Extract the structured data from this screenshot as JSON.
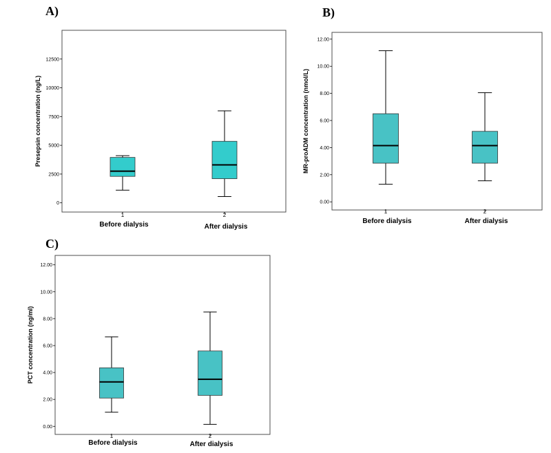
{
  "chart_data": [
    {
      "panel": "A)",
      "type": "box",
      "ylabel": "Presepsin concentration (ng/L)",
      "ylim": [
        -800,
        15000
      ],
      "yticks": [
        0,
        2500,
        5000,
        7500,
        10000,
        12500
      ],
      "ytick_labels": [
        "0",
        "2500",
        "5000",
        "7500",
        "10000",
        "12500"
      ],
      "category_numbers": [
        "1",
        "2"
      ],
      "categories": [
        "Before dialysis",
        "After dialysis"
      ],
      "color": "#33cccc",
      "boxes": [
        {
          "min": 1100,
          "q1": 2300,
          "median": 2750,
          "q3": 3950,
          "max": 4100
        },
        {
          "min": 550,
          "q1": 2100,
          "median": 3300,
          "q3": 5350,
          "max": 8000
        }
      ]
    },
    {
      "panel": "B)",
      "type": "box",
      "ylabel": "MR-proADM concentration (nmol/L)",
      "ylim": [
        -0.6,
        12.5
      ],
      "yticks": [
        0,
        2,
        4,
        6,
        8,
        10,
        12
      ],
      "ytick_labels": [
        "0.00",
        "2.00",
        "4.00",
        "6.00",
        "8.00",
        "10.00",
        "12.00"
      ],
      "category_numbers": [
        "1",
        "2"
      ],
      "categories": [
        "Before dialysis",
        "After dialysis"
      ],
      "color": "#48c2c5",
      "boxes": [
        {
          "min": 1.3,
          "q1": 2.85,
          "median": 4.15,
          "q3": 6.5,
          "max": 11.15
        },
        {
          "min": 1.55,
          "q1": 2.85,
          "median": 4.15,
          "q3": 5.2,
          "max": 8.05
        }
      ]
    },
    {
      "panel": "C)",
      "type": "box",
      "ylabel": "PCT concentration (ng/ml)",
      "ylim": [
        -0.6,
        12.7
      ],
      "yticks": [
        0,
        2,
        4,
        6,
        8,
        10,
        12
      ],
      "ytick_labels": [
        "0.00",
        "2.00",
        "4.00",
        "6.00",
        "8.00",
        "10.00",
        "12.00"
      ],
      "category_numbers": [
        "1",
        "2"
      ],
      "categories": [
        "Before dialysis",
        "After dialysis"
      ],
      "color": "#48c2c5",
      "boxes": [
        {
          "min": 1.05,
          "q1": 2.1,
          "median": 3.3,
          "q3": 4.35,
          "max": 6.65
        },
        {
          "min": 0.15,
          "q1": 2.3,
          "median": 3.5,
          "q3": 5.6,
          "max": 8.5
        }
      ]
    }
  ]
}
